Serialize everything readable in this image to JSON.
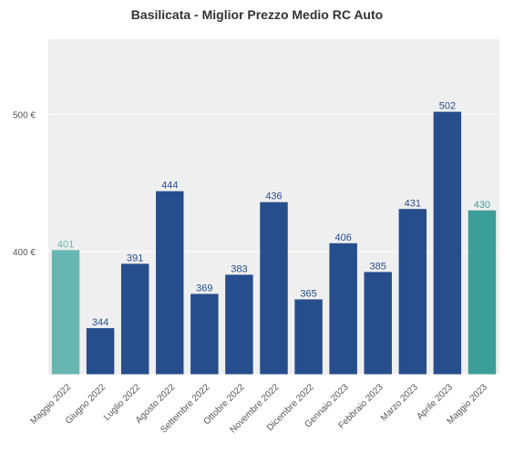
{
  "chart_data": {
    "type": "bar",
    "title": "Basilicata - Miglior Prezzo Medio RC Auto",
    "xlabel": "",
    "ylabel": "",
    "categories": [
      "Maggio 2022",
      "Giugno 2022",
      "Luglio 2022",
      "Agosto 2022",
      "Settembre 2022",
      "Ottobre 2022",
      "Novembre 2022",
      "Dicembre 2022",
      "Gennaio 2023",
      "Febbraio 2023",
      "Marzo 2023",
      "Aprile 2023",
      "Maggio 2023"
    ],
    "values": [
      401,
      344,
      391,
      444,
      369,
      383,
      436,
      365,
      406,
      385,
      431,
      502,
      430
    ],
    "value_labels": [
      "401",
      "344",
      "391",
      "444",
      "369",
      "383",
      "436",
      "365",
      "406",
      "385",
      "431",
      "502",
      "430"
    ],
    "bar_colors": [
      "#68b6b1",
      "#264e8c",
      "#264e8c",
      "#264e8c",
      "#264e8c",
      "#264e8c",
      "#264e8c",
      "#264e8c",
      "#264e8c",
      "#264e8c",
      "#264e8c",
      "#264e8c",
      "#3c9e98"
    ],
    "label_colors": [
      "#68b6b1",
      "#264e8c",
      "#264e8c",
      "#264e8c",
      "#264e8c",
      "#264e8c",
      "#264e8c",
      "#264e8c",
      "#264e8c",
      "#264e8c",
      "#264e8c",
      "#264e8c",
      "#3c9e98"
    ],
    "yticks": [
      400,
      500
    ],
    "ytick_labels": [
      "400 €",
      "500 €"
    ],
    "ylim": [
      310,
      555
    ],
    "grid": true,
    "background": "#efefef"
  }
}
